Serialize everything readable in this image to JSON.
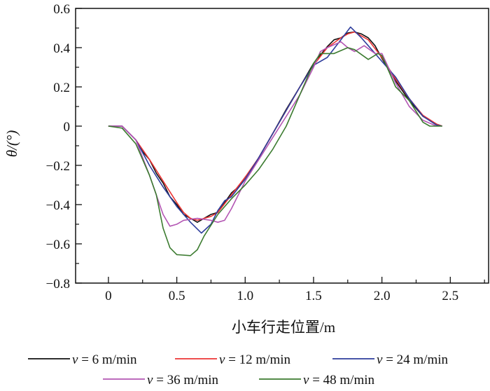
{
  "chart_data": {
    "type": "line",
    "title": "",
    "xlabel": "小车行走位置/m",
    "ylabel": "θ/(°)",
    "xlim": [
      -0.24,
      2.78
    ],
    "ylim": [
      -0.8,
      0.6
    ],
    "xticks": [
      0,
      0.5,
      1.0,
      1.5,
      2.0,
      2.5
    ],
    "xtick_labels": [
      "0",
      "0.5",
      "1.0",
      "1.5",
      "2.0",
      "2.5"
    ],
    "yticks": [
      0.6,
      0.4,
      0.2,
      0,
      -0.2,
      -0.4,
      -0.6,
      -0.8
    ],
    "ytick_labels": [
      "0.6",
      "0.4",
      "0.2",
      "0",
      "−0.2",
      "−0.4",
      "−0.6",
      "−0.8"
    ],
    "grid": false,
    "legend_position": "bottom",
    "series": [
      {
        "name": "v = 6 m/min",
        "color": "#111111",
        "x": [
          0,
          0.1,
          0.2,
          0.25,
          0.3,
          0.35,
          0.4,
          0.45,
          0.5,
          0.55,
          0.6,
          0.65,
          0.7,
          0.75,
          0.8,
          0.85,
          0.9,
          0.95,
          1.0,
          1.05,
          1.1,
          1.2,
          1.3,
          1.4,
          1.5,
          1.6,
          1.65,
          1.7,
          1.75,
          1.8,
          1.85,
          1.9,
          1.95,
          2.0,
          2.1,
          2.2,
          2.3,
          2.4,
          2.44
        ],
        "y": [
          0,
          0,
          -0.07,
          -0.13,
          -0.17,
          -0.24,
          -0.29,
          -0.36,
          -0.4,
          -0.45,
          -0.47,
          -0.49,
          -0.47,
          -0.45,
          -0.44,
          -0.39,
          -0.34,
          -0.31,
          -0.26,
          -0.22,
          -0.16,
          -0.04,
          0.085,
          0.2,
          0.32,
          0.405,
          0.44,
          0.45,
          0.475,
          0.48,
          0.47,
          0.45,
          0.41,
          0.345,
          0.23,
          0.13,
          0.05,
          0.01,
          0
        ]
      },
      {
        "name": "v = 12 m/min",
        "color": "#ec3434",
        "x": [
          0,
          0.1,
          0.2,
          0.3,
          0.4,
          0.5,
          0.55,
          0.6,
          0.65,
          0.7,
          0.75,
          0.8,
          0.9,
          1.0,
          1.1,
          1.2,
          1.3,
          1.4,
          1.5,
          1.6,
          1.7,
          1.75,
          1.8,
          1.9,
          2.0,
          2.1,
          2.2,
          2.3,
          2.4,
          2.44
        ],
        "y": [
          0,
          0,
          -0.07,
          -0.17,
          -0.28,
          -0.39,
          -0.44,
          -0.47,
          -0.48,
          -0.47,
          -0.46,
          -0.44,
          -0.35,
          -0.26,
          -0.16,
          -0.04,
          0.08,
          0.2,
          0.31,
          0.4,
          0.45,
          0.47,
          0.48,
          0.44,
          0.35,
          0.24,
          0.14,
          0.055,
          0.01,
          0
        ]
      },
      {
        "name": "v = 24 m/min",
        "color": "#2e3d9c",
        "x": [
          0,
          0.1,
          0.2,
          0.3,
          0.4,
          0.5,
          0.6,
          0.68,
          0.75,
          0.8,
          0.85,
          0.9,
          1.0,
          1.1,
          1.2,
          1.3,
          1.4,
          1.5,
          1.6,
          1.7,
          1.77,
          1.85,
          1.9,
          2.0,
          2.1,
          2.2,
          2.3,
          2.4,
          2.44
        ],
        "y": [
          0,
          0,
          -0.07,
          -0.2,
          -0.31,
          -0.41,
          -0.49,
          -0.545,
          -0.5,
          -0.43,
          -0.38,
          -0.36,
          -0.27,
          -0.16,
          -0.04,
          0.08,
          0.2,
          0.31,
          0.35,
          0.44,
          0.505,
          0.45,
          0.41,
          0.33,
          0.25,
          0.14,
          0.05,
          0.005,
          0
        ]
      },
      {
        "name": "v = 36 m/min",
        "color": "#b356b3",
        "x": [
          0,
          0.1,
          0.2,
          0.3,
          0.4,
          0.45,
          0.5,
          0.55,
          0.65,
          0.75,
          0.8,
          0.85,
          0.9,
          1.0,
          1.1,
          1.2,
          1.3,
          1.4,
          1.5,
          1.55,
          1.6,
          1.7,
          1.75,
          1.8,
          1.87,
          1.95,
          2.0,
          2.1,
          2.2,
          2.3,
          2.4
        ],
        "y": [
          0,
          0,
          -0.07,
          -0.25,
          -0.45,
          -0.51,
          -0.5,
          -0.48,
          -0.47,
          -0.48,
          -0.49,
          -0.48,
          -0.42,
          -0.28,
          -0.17,
          -0.06,
          0.05,
          0.16,
          0.3,
          0.38,
          0.4,
          0.43,
          0.4,
          0.38,
          0.41,
          0.37,
          0.37,
          0.22,
          0.1,
          0.03,
          0
        ]
      },
      {
        "name": "v = 48 m/min",
        "color": "#3b7b2f",
        "x": [
          0,
          0.1,
          0.2,
          0.3,
          0.35,
          0.4,
          0.45,
          0.5,
          0.6,
          0.65,
          0.7,
          0.8,
          0.9,
          1.0,
          1.1,
          1.2,
          1.3,
          1.4,
          1.5,
          1.55,
          1.65,
          1.75,
          1.8,
          1.9,
          1.97,
          2.0,
          2.1,
          2.2,
          2.3,
          2.35,
          2.44
        ],
        "y": [
          0,
          -0.01,
          -0.09,
          -0.25,
          -0.35,
          -0.52,
          -0.62,
          -0.655,
          -0.66,
          -0.63,
          -0.56,
          -0.45,
          -0.37,
          -0.3,
          -0.22,
          -0.12,
          0,
          0.16,
          0.32,
          0.37,
          0.37,
          0.4,
          0.39,
          0.34,
          0.37,
          0.36,
          0.2,
          0.13,
          0.02,
          0,
          0
        ]
      }
    ]
  }
}
